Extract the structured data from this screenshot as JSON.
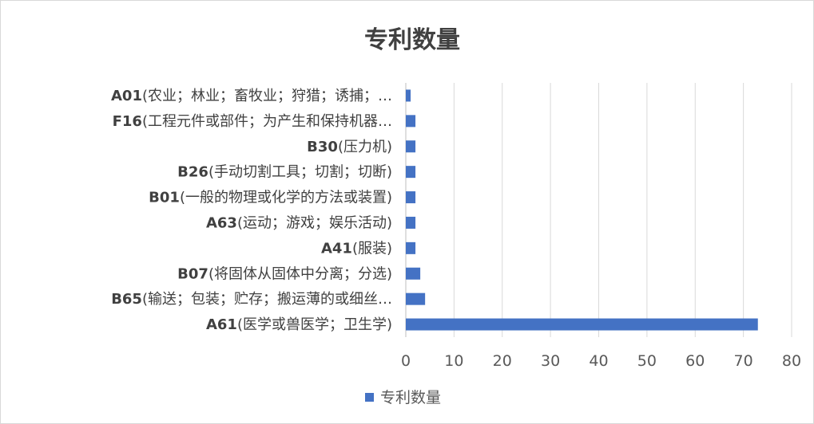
{
  "chart_data": {
    "type": "bar",
    "orientation": "horizontal",
    "title": "专利数量",
    "categories": [
      {
        "code": "A01",
        "text": "(农业；林业；畜牧业；狩猎；诱捕；…"
      },
      {
        "code": "F16",
        "text": "(工程元件或部件；为产生和保持机器…"
      },
      {
        "code": "B30",
        "text": "(压力机)"
      },
      {
        "code": "B26",
        "text": "(手动切割工具；切割；切断)"
      },
      {
        "code": "B01",
        "text": "(一般的物理或化学的方法或装置)"
      },
      {
        "code": "A63",
        "text": "(运动；游戏；娱乐活动)"
      },
      {
        "code": "A41",
        "text": "(服装)"
      },
      {
        "code": "B07",
        "text": "(将固体从固体中分离；分选)"
      },
      {
        "code": "B65",
        "text": "(输送；包装；贮存；搬运薄的或细丝…"
      },
      {
        "code": "A61",
        "text": "(医学或兽医学；卫生学)"
      }
    ],
    "series": [
      {
        "name": "专利数量",
        "values": [
          1,
          2,
          2,
          2,
          2,
          2,
          2,
          3,
          4,
          73
        ],
        "color": "#4472c4"
      }
    ],
    "xlim": [
      0,
      80
    ],
    "xticks": [
      "0",
      "10",
      "20",
      "30",
      "40",
      "50",
      "60",
      "70",
      "80"
    ],
    "grid": true,
    "legend_position": "bottom"
  }
}
